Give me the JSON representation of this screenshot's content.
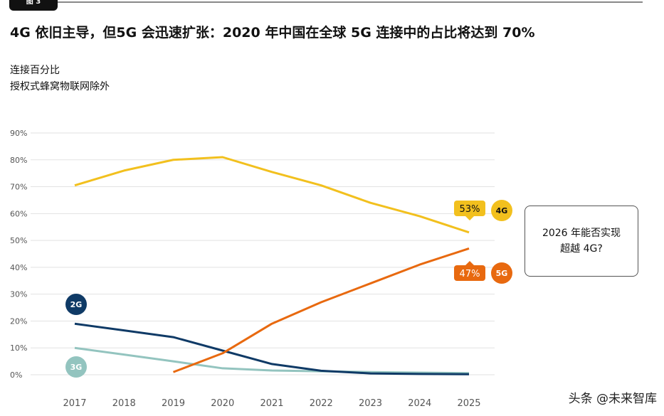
{
  "figure_label": "图 3",
  "chart_data": {
    "type": "line",
    "title": "4G 依旧主导，但5G 会迅速扩张：2020 年中国在全球 5G 连接中的占比将达到 70%",
    "subtitle": [
      "连接百分比",
      "授权式蜂窝物联网除外"
    ],
    "x": [
      2017,
      2018,
      2019,
      2020,
      2021,
      2022,
      2023,
      2024,
      2025
    ],
    "ylim": [
      0,
      90
    ],
    "yticks": [
      "0%",
      "10%",
      "20%",
      "30%",
      "40%",
      "50%",
      "60%",
      "70%",
      "80%",
      "90%"
    ],
    "grid": true,
    "series": [
      {
        "name": "4G",
        "color": "#f2c01e",
        "values": [
          70.5,
          76,
          80,
          81,
          75.5,
          70.5,
          64,
          59,
          53
        ],
        "end_label": "53%"
      },
      {
        "name": "5G",
        "color": "#e8690f",
        "values": [
          null,
          null,
          1,
          8,
          19,
          27,
          34,
          41,
          47
        ],
        "end_label": "47%"
      },
      {
        "name": "2G",
        "color": "#0f3a66",
        "values": [
          19,
          16.5,
          14,
          9,
          4,
          1.5,
          0.5,
          0.3,
          0.2
        ]
      },
      {
        "name": "3G",
        "color": "#93c4bf",
        "values": [
          10,
          7.5,
          5,
          2.4,
          1.6,
          1.3,
          1,
          0.8,
          0.6
        ]
      }
    ],
    "annotation": [
      "2026 年能否实现",
      "超越 4G?"
    ]
  },
  "watermark": "头条 @未来智库"
}
